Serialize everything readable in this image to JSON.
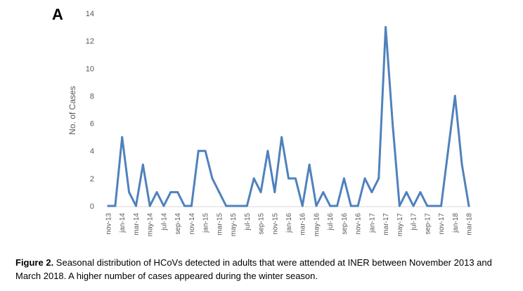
{
  "panel_label": "A",
  "caption": {
    "label": "Figure 2.",
    "text": " Seasonal distribution of HCoVs detected in adults that were attended at INER between November 2013 and March 2018.  A higher number of cases appeared during the winter season."
  },
  "chart_data": {
    "type": "line",
    "title": "",
    "xlabel": "",
    "ylabel": "No. of Cases",
    "ylim": [
      0,
      14
    ],
    "yticks": [
      0,
      2,
      4,
      6,
      8,
      10,
      12,
      14
    ],
    "grid": false,
    "line_color": "#4f81bd",
    "x": [
      "nov-13",
      "dec-13",
      "jan-14",
      "feb-14",
      "mar-14",
      "apr-14",
      "may-14",
      "jun-14",
      "jul-14",
      "aug-14",
      "sep-14",
      "oct-14",
      "nov-14",
      "dec-14",
      "jan-15",
      "feb-15",
      "mar-15",
      "apr-15",
      "may-15",
      "jun-15",
      "jul-15",
      "aug-15",
      "sep-15",
      "oct-15",
      "nov-15",
      "dec-15",
      "jan-16",
      "feb-16",
      "mar-16",
      "apr-16",
      "may-16",
      "jun-16",
      "jul-16",
      "aug-16",
      "sep-16",
      "oct-16",
      "nov-16",
      "dec-16",
      "jan-17",
      "feb-17",
      "mar-17",
      "apr-17",
      "may-17",
      "jun-17",
      "jul-17",
      "aug-17",
      "sep-17",
      "oct-17",
      "nov-17",
      "dec-17",
      "jan-18",
      "feb-18",
      "mar-18"
    ],
    "x_tick_labels": [
      "nov-13",
      "jan-14",
      "mar-14",
      "may-14",
      "jul-14",
      "sep-14",
      "nov-14",
      "jan-15",
      "mar-15",
      "may-15",
      "jul-15",
      "sep-15",
      "nov-15",
      "jan-16",
      "mar-16",
      "may-16",
      "jul-16",
      "sep-16",
      "nov-16",
      "jan-17",
      "mar-17",
      "may-17",
      "jul-17",
      "sep-17",
      "nov-17",
      "jan-18",
      "mar-18"
    ],
    "series": [
      {
        "values": [
          0,
          0,
          5,
          1,
          0,
          3,
          0,
          1,
          0,
          1,
          1,
          0,
          0,
          4,
          4,
          2,
          1,
          0,
          0,
          0,
          0,
          2,
          1,
          4,
          1,
          5,
          2,
          2,
          0,
          3,
          0,
          1,
          0,
          0,
          2,
          0,
          0,
          2,
          1,
          2,
          13,
          6,
          0,
          1,
          0,
          1,
          0,
          0,
          0,
          4,
          8,
          3,
          0
        ]
      }
    ]
  }
}
